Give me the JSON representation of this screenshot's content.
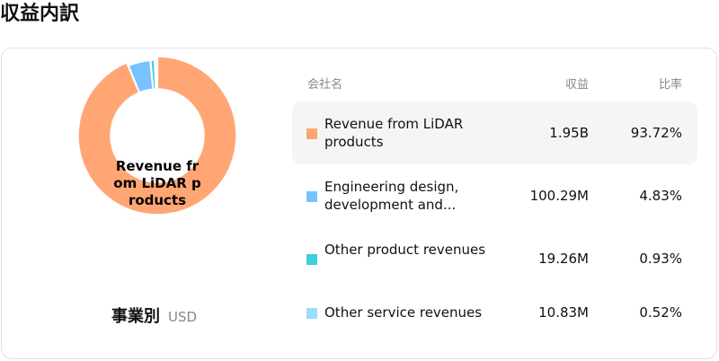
{
  "page_title": "収益内訳",
  "center_label": "Revenue from LiDAR products",
  "caption": {
    "title": "事業別",
    "unit": "USD"
  },
  "table": {
    "headers": {
      "company": "会社名",
      "revenue": "収益",
      "ratio": "比率"
    },
    "rows": [
      {
        "name": "Revenue from LiDAR products",
        "revenue": "1.95B",
        "ratio": "93.72%",
        "color": "#FFA674"
      },
      {
        "name": "Engineering design, development and...",
        "revenue": "100.29M",
        "ratio": "4.83%",
        "color": "#77C2FF"
      },
      {
        "name": "Other product revenues",
        "revenue": "19.26M",
        "ratio": "0.93%",
        "color": "#3DD0DE"
      },
      {
        "name": "Other service revenues",
        "revenue": "10.83M",
        "ratio": "0.52%",
        "color": "#9BDCF9"
      }
    ]
  },
  "chart_data": {
    "type": "pie",
    "variant": "donut",
    "categories": [
      "Revenue from LiDAR products",
      "Engineering design, development and...",
      "Other product revenues",
      "Other service revenues"
    ],
    "values": [
      93.72,
      4.83,
      0.93,
      0.52
    ],
    "colors": [
      "#FFA674",
      "#77C2FF",
      "#3DD0DE",
      "#9BDCF9"
    ],
    "highlighted": 0,
    "legend": "right"
  }
}
